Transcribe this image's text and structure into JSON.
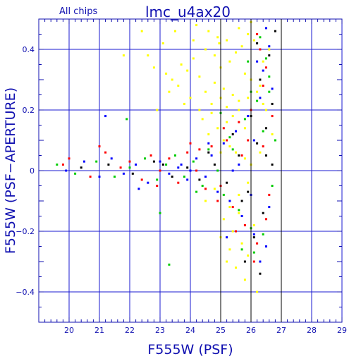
{
  "chart_data": {
    "type": "scatter",
    "title": "lmc_u4ax20",
    "subtitle": "All chips",
    "xlabel": "F555W (PSF)",
    "ylabel": "F555W (PSF−APERTURE)",
    "xlim": [
      19,
      29
    ],
    "ylim": [
      -0.5,
      0.5
    ],
    "xticks": [
      "20",
      "21",
      "22",
      "23",
      "24",
      "25",
      "26",
      "27",
      "28",
      "29"
    ],
    "yticks": [
      "−0.4",
      "−0.2",
      "0",
      "0.2",
      "0.4"
    ],
    "xtick_values": [
      20,
      21,
      22,
      23,
      24,
      25,
      26,
      27,
      28,
      29
    ],
    "ytick_values": [
      -0.4,
      -0.2,
      0,
      0.2,
      0.4
    ],
    "grid": true,
    "colors": {
      "frame": "#1010b0",
      "grid": "#1a1ad0",
      "title": "#1010b0",
      "black_lines": "#000000"
    },
    "vertical_reference_lines": [
      25,
      26,
      27
    ],
    "series": [
      {
        "color": "#ffff00",
        "points": [
          [
            24.2,
            0.48
          ],
          [
            24.6,
            0.46
          ],
          [
            24.9,
            0.44
          ],
          [
            24.5,
            0.4
          ],
          [
            24.1,
            0.37
          ],
          [
            23.7,
            0.35
          ],
          [
            23.9,
            0.33
          ],
          [
            24.3,
            0.31
          ],
          [
            24.8,
            0.29
          ],
          [
            25.1,
            0.27
          ],
          [
            25.4,
            0.25
          ],
          [
            25.6,
            0.23
          ],
          [
            25.2,
            0.21
          ],
          [
            24.7,
            0.19
          ],
          [
            24.4,
            0.17
          ],
          [
            23.6,
            0.28
          ],
          [
            23.4,
            0.3
          ],
          [
            23.2,
            0.32
          ],
          [
            22.8,
            0.34
          ],
          [
            22.6,
            0.38
          ],
          [
            25.9,
            0.45
          ],
          [
            26.1,
            0.43
          ],
          [
            25.7,
            0.41
          ],
          [
            25.5,
            0.39
          ],
          [
            25.3,
            0.36
          ],
          [
            25.0,
            0.34
          ],
          [
            24.95,
            0.42
          ],
          [
            25.8,
            0.32
          ],
          [
            26.0,
            0.3
          ],
          [
            26.3,
            0.28
          ],
          [
            26.2,
            0.26
          ],
          [
            25.9,
            0.24
          ],
          [
            25.6,
            0.2
          ],
          [
            25.4,
            0.18
          ],
          [
            25.2,
            0.16
          ],
          [
            24.9,
            0.14
          ],
          [
            24.6,
            0.12
          ],
          [
            25.1,
            0.1
          ],
          [
            25.3,
            0.08
          ],
          [
            25.5,
            0.06
          ],
          [
            25.8,
            0.04
          ],
          [
            26.0,
            0.02
          ],
          [
            25.9,
            -0.04
          ],
          [
            25.6,
            -0.08
          ],
          [
            25.3,
            -0.12
          ],
          [
            25.1,
            -0.16
          ],
          [
            25.4,
            -0.2
          ],
          [
            25.7,
            -0.24
          ],
          [
            25.9,
            -0.28
          ],
          [
            25.3,
            -0.26
          ],
          [
            25.5,
            -0.32
          ],
          [
            25.8,
            -0.36
          ],
          [
            26.2,
            -0.4
          ],
          [
            26.4,
            0.36
          ],
          [
            26.6,
            0.4
          ],
          [
            24.0,
            0.24
          ],
          [
            23.8,
            0.22
          ],
          [
            24.3,
            0.2
          ],
          [
            24.7,
            0.22
          ],
          [
            25.0,
            0.24
          ],
          [
            22.4,
            0.46
          ],
          [
            21.8,
            0.38
          ],
          [
            23.1,
            0.42
          ],
          [
            23.5,
            0.46
          ],
          [
            26.5,
            0.2
          ],
          [
            26.7,
            0.12
          ],
          [
            26.3,
            0.06
          ],
          [
            25.0,
            0.06
          ],
          [
            24.8,
            -0.06
          ],
          [
            24.5,
            -0.1
          ],
          [
            25.6,
            -0.14
          ],
          [
            26.1,
            -0.18
          ],
          [
            25.2,
            -0.3
          ],
          [
            25.0,
            -0.22
          ],
          [
            24.8,
            0.38
          ],
          [
            25.6,
            0.47
          ],
          [
            26.0,
            0.49
          ],
          [
            24.1,
            0.43
          ],
          [
            23.3,
            0.26
          ],
          [
            22.9,
            0.2
          ],
          [
            24.5,
            0.26
          ],
          [
            25.8,
            0.14
          ],
          [
            26.4,
            0.22
          ],
          [
            25.2,
            0.43
          ]
        ]
      },
      {
        "color": "#000000",
        "points": [
          [
            20.4,
            0.01
          ],
          [
            21.3,
            0.02
          ],
          [
            22.1,
            -0.01
          ],
          [
            22.8,
            0.03
          ],
          [
            23.4,
            -0.02
          ],
          [
            23.9,
            0.01
          ],
          [
            24.3,
            -0.03
          ],
          [
            24.8,
            0.02
          ],
          [
            25.2,
            -0.04
          ],
          [
            25.6,
            0.05
          ],
          [
            25.9,
            -0.07
          ],
          [
            26.2,
            0.09
          ],
          [
            26.5,
            0.14
          ],
          [
            26.7,
            0.22
          ],
          [
            26.3,
            0.3
          ],
          [
            26.6,
            0.38
          ],
          [
            26.8,
            0.46
          ],
          [
            26.4,
            -0.14
          ],
          [
            26.1,
            -0.22
          ],
          [
            25.8,
            -0.3
          ],
          [
            26.3,
            -0.34
          ],
          [
            26.5,
            0.05
          ],
          [
            25.4,
            0.12
          ],
          [
            26.0,
            0.18
          ],
          [
            26.7,
            0.02
          ],
          [
            25.7,
            -0.1
          ],
          [
            24.6,
            0.06
          ],
          [
            23.1,
            0.02
          ],
          [
            26.2,
            0.42
          ]
        ]
      },
      {
        "color": "#ff0000",
        "points": [
          [
            20.0,
            0.04
          ],
          [
            20.7,
            -0.02
          ],
          [
            21.2,
            0.06
          ],
          [
            21.7,
            0.01
          ],
          [
            22.0,
            0.03
          ],
          [
            22.4,
            -0.03
          ],
          [
            22.7,
            0.05
          ],
          [
            23.0,
            0.0
          ],
          [
            23.3,
            0.04
          ],
          [
            23.6,
            -0.04
          ],
          [
            23.9,
            0.06
          ],
          [
            24.2,
            0.0
          ],
          [
            24.5,
            -0.06
          ],
          [
            24.7,
            0.08
          ],
          [
            25.0,
            -0.05
          ],
          [
            25.2,
            0.1
          ],
          [
            25.4,
            -0.12
          ],
          [
            25.6,
            0.16
          ],
          [
            25.8,
            -0.18
          ],
          [
            26.0,
            0.2
          ],
          [
            26.2,
            -0.24
          ],
          [
            26.4,
            0.28
          ],
          [
            26.6,
            -0.08
          ],
          [
            26.5,
            0.34
          ],
          [
            26.3,
            0.4
          ],
          [
            25.9,
            0.1
          ],
          [
            25.5,
            -0.2
          ],
          [
            25.1,
            0.14
          ],
          [
            24.9,
            -0.1
          ],
          [
            26.1,
            -0.3
          ],
          [
            26.4,
            0.08
          ],
          [
            26.7,
            0.18
          ],
          [
            21.0,
            0.08
          ],
          [
            19.8,
            0.02
          ],
          [
            22.9,
            -0.05
          ],
          [
            24.0,
            0.09
          ],
          [
            25.7,
            0.05
          ],
          [
            26.5,
            -0.16
          ],
          [
            26.2,
            0.45
          ],
          [
            24.3,
            0.07
          ]
        ]
      },
      {
        "color": "#00cc00",
        "points": [
          [
            19.6,
            0.02
          ],
          [
            20.2,
            -0.01
          ],
          [
            20.9,
            0.03
          ],
          [
            21.5,
            -0.02
          ],
          [
            22.0,
            0.01
          ],
          [
            22.5,
            0.04
          ],
          [
            22.9,
            -0.03
          ],
          [
            23.2,
            0.02
          ],
          [
            23.5,
            0.05
          ],
          [
            23.8,
            -0.02
          ],
          [
            24.1,
            0.03
          ],
          [
            24.4,
            -0.05
          ],
          [
            24.6,
            0.07
          ],
          [
            24.9,
            0.0
          ],
          [
            25.1,
            -0.08
          ],
          [
            25.3,
            0.11
          ],
          [
            25.6,
            -0.13
          ],
          [
            25.8,
            0.17
          ],
          [
            26.0,
            -0.19
          ],
          [
            26.2,
            0.23
          ],
          [
            26.4,
            -0.21
          ],
          [
            26.6,
            0.31
          ],
          [
            26.7,
            -0.05
          ],
          [
            26.5,
            0.37
          ],
          [
            26.3,
            0.44
          ],
          [
            26.0,
            0.26
          ],
          [
            25.7,
            -0.26
          ],
          [
            25.4,
            0.07
          ],
          [
            26.1,
            -0.27
          ],
          [
            26.6,
            0.26
          ],
          [
            23.0,
            -0.14
          ],
          [
            21.9,
            0.17
          ],
          [
            23.3,
            -0.31
          ],
          [
            25.0,
            0.19
          ],
          [
            26.4,
            0.13
          ],
          [
            24.2,
            -0.07
          ],
          [
            25.9,
            0.36
          ],
          [
            26.8,
            0.1
          ]
        ]
      },
      {
        "color": "#0000ff",
        "points": [
          [
            19.9,
            0.0
          ],
          [
            20.5,
            0.03
          ],
          [
            21.0,
            -0.02
          ],
          [
            21.4,
            0.04
          ],
          [
            21.8,
            -0.01
          ],
          [
            22.2,
            0.02
          ],
          [
            22.6,
            -0.04
          ],
          [
            23.0,
            0.03
          ],
          [
            23.3,
            -0.01
          ],
          [
            23.6,
            0.01
          ],
          [
            23.9,
            -0.03
          ],
          [
            24.2,
            0.04
          ],
          [
            24.5,
            -0.02
          ],
          [
            24.7,
            0.05
          ],
          [
            24.9,
            -0.07
          ],
          [
            25.1,
            0.09
          ],
          [
            25.3,
            -0.1
          ],
          [
            25.5,
            0.13
          ],
          [
            25.7,
            -0.15
          ],
          [
            25.9,
            0.18
          ],
          [
            26.1,
            -0.21
          ],
          [
            26.3,
            0.24
          ],
          [
            26.5,
            -0.25
          ],
          [
            26.7,
            0.27
          ],
          [
            26.4,
            0.33
          ],
          [
            26.6,
            0.41
          ],
          [
            26.2,
            0.36
          ],
          [
            25.6,
            0.02
          ],
          [
            26.0,
            -0.08
          ],
          [
            26.3,
            -0.3
          ],
          [
            25.2,
            -0.22
          ],
          [
            24.6,
            0.09
          ],
          [
            26.5,
            0.47
          ],
          [
            21.2,
            0.18
          ],
          [
            22.3,
            -0.06
          ],
          [
            24.0,
            0.0
          ],
          [
            25.4,
            0.0
          ],
          [
            26.1,
            0.1
          ],
          [
            26.6,
            -0.12
          ],
          [
            23.7,
            0.02
          ]
        ]
      }
    ]
  }
}
